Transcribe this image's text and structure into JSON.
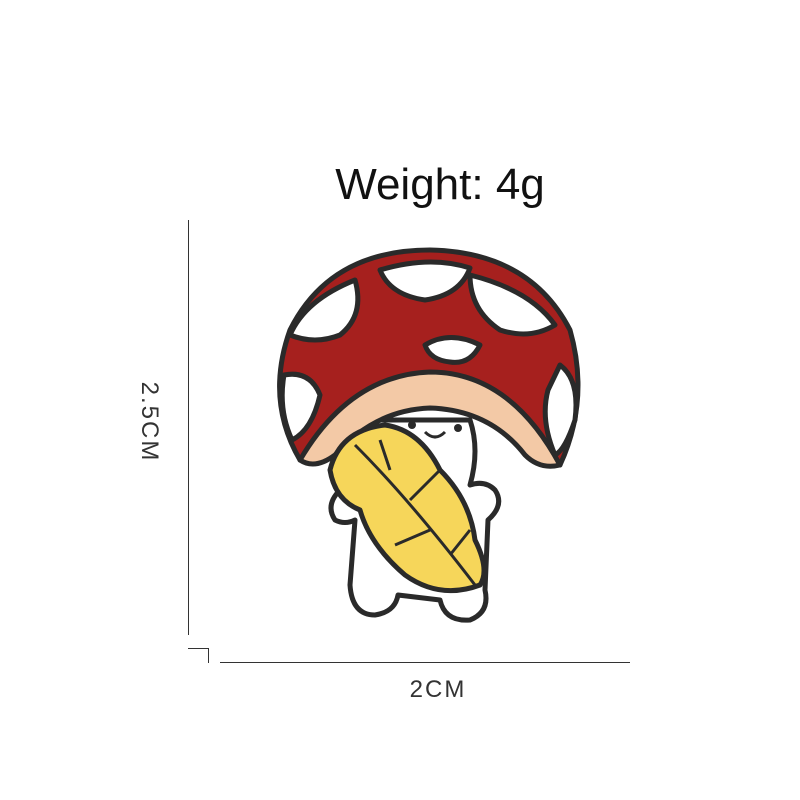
{
  "title": "Weight: 4g",
  "dimensions": {
    "height_label": "2.5CM",
    "width_label": "2CM"
  },
  "colors": {
    "cap": "#a6201e",
    "gills": "#f3c9a6",
    "leaf": "#f6d65a",
    "outline": "#2a2a2a"
  }
}
